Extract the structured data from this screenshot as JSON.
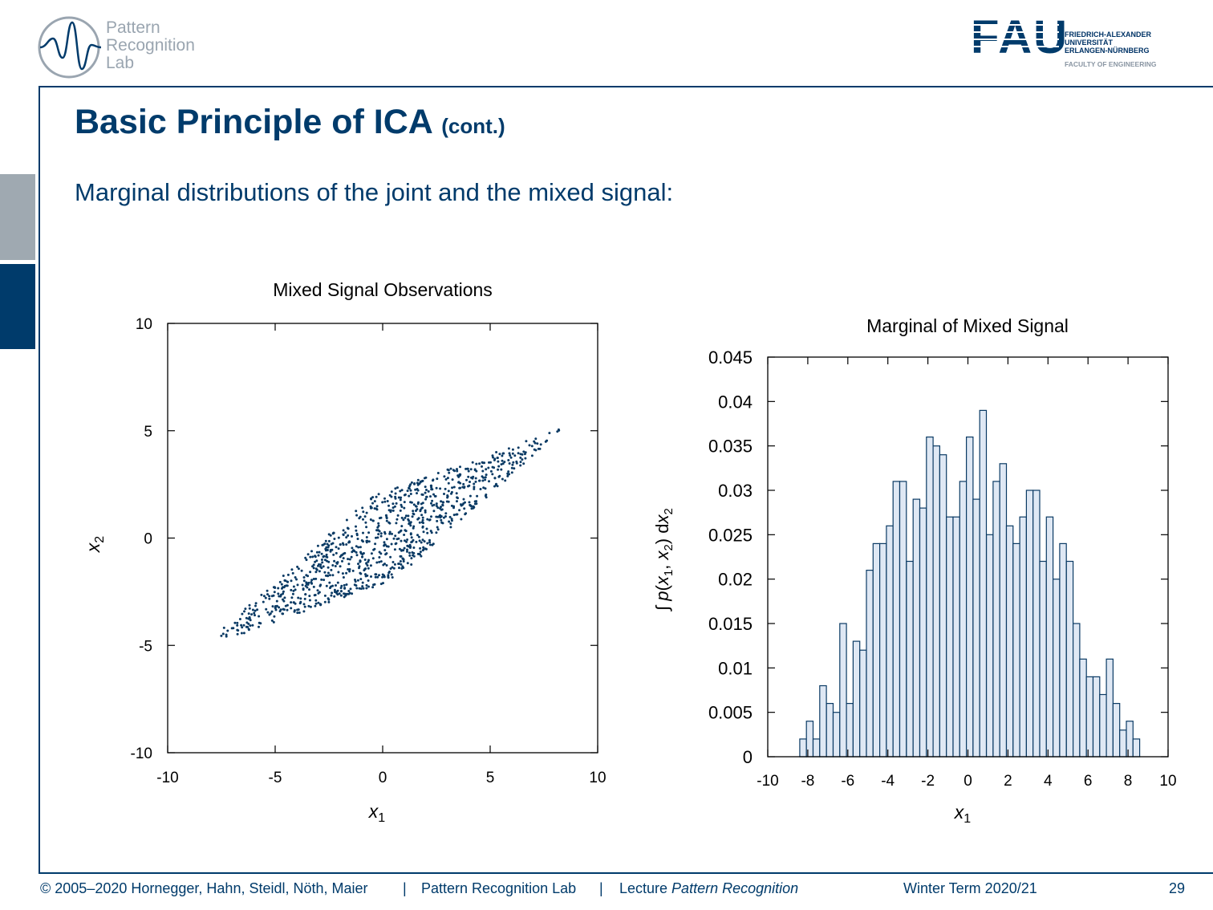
{
  "header": {
    "lab_logo_lines": [
      "Pattern",
      "Recognition",
      "Lab"
    ],
    "fau_logo": "FAU",
    "fau_lines": [
      "FRIEDRICH-ALEXANDER",
      "UNIVERSITÄT",
      "ERLANGEN-NÜRNBERG"
    ],
    "faculty": "FACULTY OF ENGINEERING"
  },
  "slide": {
    "title": "Basic Principle of ICA",
    "title_suffix": "(cont.)",
    "subtitle": "Marginal distributions of the joint and the mixed signal:"
  },
  "colors": {
    "brand": "#003b6b",
    "point": "#0a3a64",
    "bar_fill": "#dfe8f4",
    "bar_stroke": "#0a3a64"
  },
  "chart_data": [
    {
      "type": "scatter",
      "title": "Mixed Signal Observations",
      "xlabel": "x1",
      "ylabel": "x2",
      "xlim": [
        -10,
        10
      ],
      "ylim": [
        -10,
        10
      ],
      "xticks": [
        "-10",
        "-5",
        "0",
        "5",
        "10"
      ],
      "yticks": [
        "10",
        "5",
        "0",
        "-5",
        "-10"
      ],
      "description_of_distribution": "approx. 1000 points uniformly filling a parallelogram with corners near (-8.2,-4.9), (8.3,5.1), (-0.5,2.0), (0.5,-2.0)",
      "corners": [
        [
          -8.2,
          -4.9
        ],
        [
          -0.5,
          2.0
        ],
        [
          8.3,
          5.1
        ],
        [
          0.5,
          -2.0
        ]
      ],
      "n_points": 1000
    },
    {
      "type": "bar",
      "title": "Marginal of Mixed Signal",
      "xlabel": "x1",
      "ylabel": "∫ p(x1, x2) dx2",
      "xlim": [
        -10,
        10
      ],
      "ylim": [
        0,
        0.045
      ],
      "xticks": [
        "-10",
        "-8",
        "-6",
        "-4",
        "-2",
        "0",
        "2",
        "4",
        "6",
        "8",
        "10"
      ],
      "yticks": [
        "0.045",
        "0.04",
        "0.035",
        "0.03",
        "0.025",
        "0.02",
        "0.015",
        "0.01",
        "0.005",
        "0"
      ],
      "bin_start": -8.4,
      "bin_width": 0.333,
      "values": [
        0.002,
        0.004,
        0.002,
        0.008,
        0.006,
        0.005,
        0.015,
        0.006,
        0.013,
        0.012,
        0.021,
        0.024,
        0.024,
        0.026,
        0.031,
        0.031,
        0.022,
        0.029,
        0.028,
        0.036,
        0.035,
        0.034,
        0.027,
        0.027,
        0.031,
        0.036,
        0.029,
        0.039,
        0.025,
        0.031,
        0.033,
        0.026,
        0.024,
        0.027,
        0.03,
        0.03,
        0.022,
        0.027,
        0.02,
        0.024,
        0.022,
        0.015,
        0.011,
        0.009,
        0.009,
        0.007,
        0.011,
        0.006,
        0.003,
        0.004,
        0.002
      ]
    }
  ],
  "footer": {
    "copyright": "© 2005–2020 Hornegger, Hahn, Steidl, Nöth, Maier",
    "separator": "|",
    "lab": "Pattern Recognition Lab",
    "lecture_prefix": "Lecture ",
    "lecture_name": "Pattern Recognition",
    "term": "Winter Term 2020/21",
    "page": "29"
  }
}
